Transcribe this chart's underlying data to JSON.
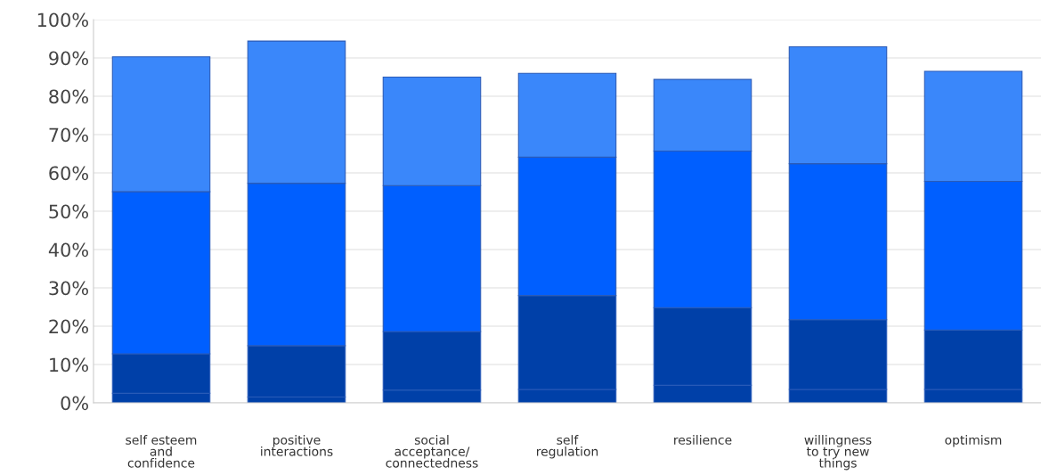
{
  "chart_data": {
    "type": "bar",
    "stacked": true,
    "categories": [
      "self esteem\nand\nconfidence",
      "positive\ninteractions",
      "social\nacceptance/\nconnectedness",
      "self\nregulation",
      "resilience",
      "willingness\nto try new\nthings",
      "optimism"
    ],
    "series": [
      {
        "color": "#0040a8",
        "values": [
          2.5,
          1.5,
          3.3,
          3.5,
          4.6,
          3.5,
          3.5
        ]
      },
      {
        "color": "#0040a8",
        "values": [
          10.3,
          13.4,
          15.3,
          24.5,
          20.2,
          18.2,
          15.5
        ]
      },
      {
        "color": "#005fff",
        "values": [
          42.3,
          42.4,
          38.1,
          36.1,
          40.9,
          40.7,
          38.8
        ]
      },
      {
        "color": "#3a87fa",
        "values": [
          35.2,
          37.1,
          28.3,
          21.9,
          18.7,
          30.5,
          28.7
        ]
      }
    ],
    "ylim": [
      0,
      100
    ],
    "yticks": [
      {
        "value": 0,
        "label": "0%"
      },
      {
        "value": 10,
        "label": "10%"
      },
      {
        "value": 20,
        "label": "20%"
      },
      {
        "value": 30,
        "label": "30%"
      },
      {
        "value": 40,
        "label": "40%"
      },
      {
        "value": 50,
        "label": "50%"
      },
      {
        "value": 60,
        "label": "60%"
      },
      {
        "value": 70,
        "label": "70%"
      },
      {
        "value": 80,
        "label": "80%"
      },
      {
        "value": 90,
        "label": "90%"
      },
      {
        "value": 100,
        "label": "100%"
      }
    ],
    "grid": "y",
    "legend": false
  }
}
